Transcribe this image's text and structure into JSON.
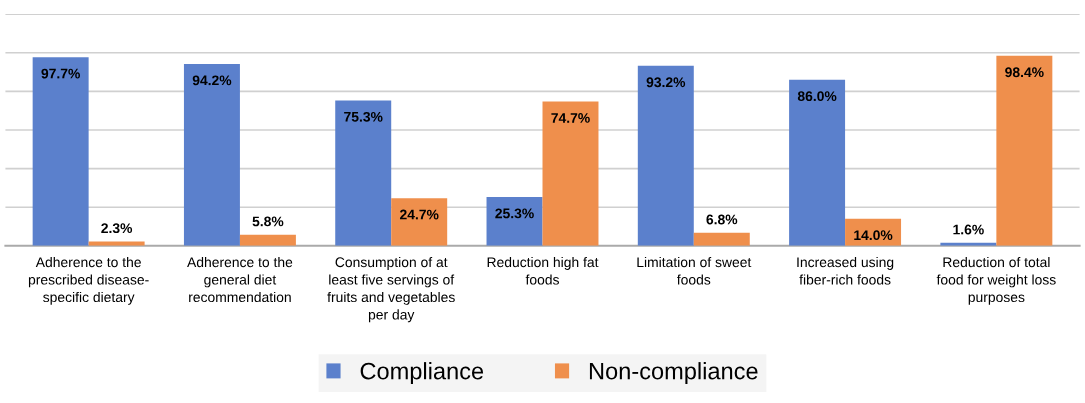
{
  "chart_data": {
    "type": "bar",
    "categories": [
      "Adherence to the\nprescribed disease-\nspecific dietary",
      "Adherence to the\ngeneral diet\nrecommendation",
      "Consumption of at\nleast five servings of\nfruits and vegetables\nper day",
      "Reduction high fat\nfoods",
      "Limitation of sweet\nfoods",
      "Increased using\nfiber-rich foods",
      "Reduction of total\nfood for weight loss\npurposes"
    ],
    "series": [
      {
        "name": "Compliance",
        "color": "#5b80cc",
        "values": [
          97.7,
          94.2,
          75.3,
          25.3,
          93.2,
          86.0,
          1.6
        ],
        "value_labels": [
          "97.7%",
          "94.2%",
          "75.3%",
          "25.3%",
          "93.2%",
          "86.0%",
          "1.6%"
        ]
      },
      {
        "name": "Non-compliance",
        "color": "#ef8f4c",
        "values": [
          2.3,
          5.8,
          24.7,
          74.7,
          6.8,
          14.0,
          98.4
        ],
        "value_labels": [
          "2.3%",
          "5.8%",
          "24.7%",
          "74.7%",
          "6.8%",
          "14.0%",
          "98.4%"
        ]
      }
    ],
    "ylim": [
      0,
      120
    ],
    "yticks": [
      {
        "value": 0,
        "label": null
      },
      {
        "value": 20,
        "label": null
      },
      {
        "value": 40,
        "label": null
      },
      {
        "value": 60,
        "label": null
      },
      {
        "value": 80,
        "label": null
      },
      {
        "value": 100,
        "label": null
      },
      {
        "value": 120,
        "label": null
      }
    ],
    "grid": "y",
    "legend": "bottom",
    "tick_labels": "x"
  }
}
